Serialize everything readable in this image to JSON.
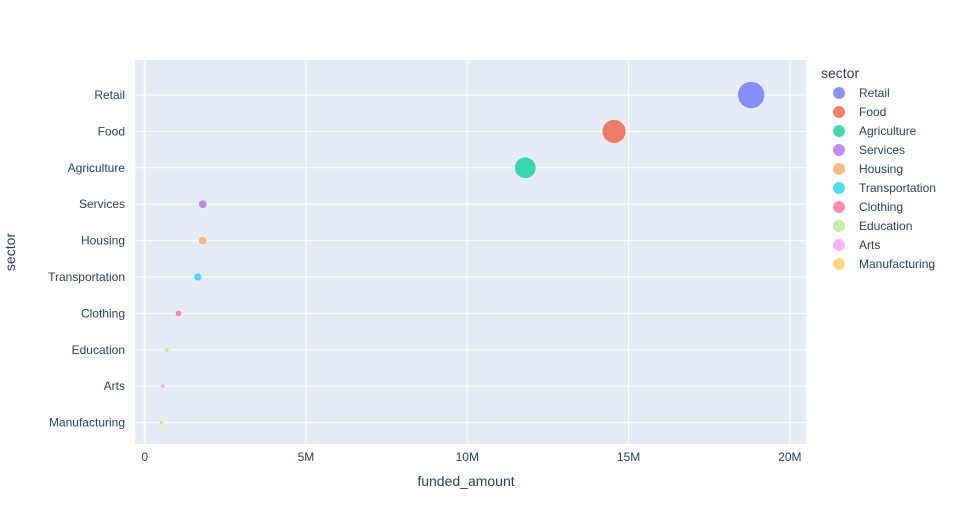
{
  "chart_data": {
    "type": "scatter",
    "title": "",
    "xlabel": "funded_amount",
    "ylabel": "sector",
    "xlim": [
      -300000,
      20500000
    ],
    "x_ticks": [
      0,
      5000000,
      10000000,
      15000000,
      20000000
    ],
    "x_tick_labels": [
      "0",
      "5M",
      "10M",
      "15M",
      "20M"
    ],
    "grid": true,
    "legend_title": "sector",
    "legend_position": "right",
    "categories": [
      "Retail",
      "Food",
      "Agriculture",
      "Services",
      "Housing",
      "Transportation",
      "Clothing",
      "Education",
      "Arts",
      "Manufacturing"
    ],
    "series": [
      {
        "name": "Retail",
        "x": 18800000,
        "y": "Retail",
        "color": "#636efa"
      },
      {
        "name": "Food",
        "x": 14550000,
        "y": "Food",
        "color": "#EF553B"
      },
      {
        "name": "Agriculture",
        "x": 11800000,
        "y": "Agriculture",
        "color": "#00cc96"
      },
      {
        "name": "Services",
        "x": 1800000,
        "y": "Services",
        "color": "#ab63fa"
      },
      {
        "name": "Housing",
        "x": 1800000,
        "y": "Housing",
        "color": "#FFA15A"
      },
      {
        "name": "Transportation",
        "x": 1650000,
        "y": "Transportation",
        "color": "#19d3f3"
      },
      {
        "name": "Clothing",
        "x": 1050000,
        "y": "Clothing",
        "color": "#FF6692"
      },
      {
        "name": "Education",
        "x": 680000,
        "y": "Education",
        "color": "#B6E880"
      },
      {
        "name": "Arts",
        "x": 560000,
        "y": "Arts",
        "color": "#FF97FF"
      },
      {
        "name": "Manufacturing",
        "x": 520000,
        "y": "Manufacturing",
        "color": "#FECB52"
      }
    ],
    "marker_size_encoding": "funded_amount"
  }
}
